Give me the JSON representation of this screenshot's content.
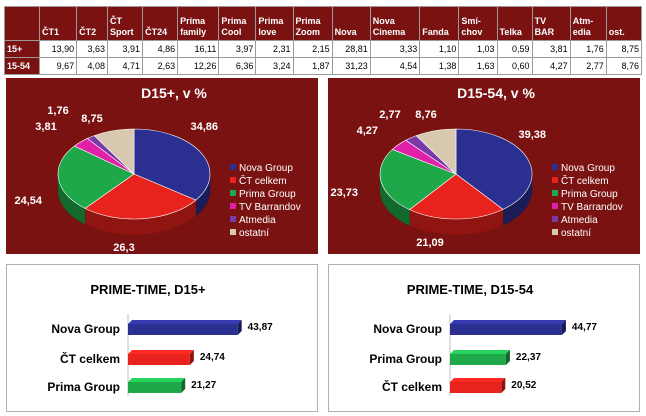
{
  "table": {
    "columns": [
      "",
      "ČT1",
      "ČT2",
      "ČT Sport",
      "ČT24",
      "Prima family",
      "Prima Cool",
      "Prima love",
      "Prima Zoom",
      "Nova",
      "Nova Cinema",
      "Fanda",
      "Smí-chov",
      "Telka",
      "TV BAR",
      "Atm-edia",
      "ost."
    ],
    "rows": [
      {
        "label": "15+",
        "values": [
          "13,90",
          "3,63",
          "3,91",
          "4,86",
          "16,11",
          "3,97",
          "2,31",
          "2,15",
          "28,81",
          "3,33",
          "1,10",
          "1,03",
          "0,59",
          "3,81",
          "1,76",
          "8,75"
        ]
      },
      {
        "label": "15-54",
        "values": [
          "9,67",
          "4,08",
          "4,71",
          "2,63",
          "12,26",
          "6,36",
          "3,24",
          "1,87",
          "31,23",
          "4,54",
          "1,38",
          "1,63",
          "0,60",
          "4,27",
          "2,77",
          "8,76"
        ]
      }
    ]
  },
  "colors": {
    "maroon": "#7a1212",
    "nova": "#2b2f8f",
    "ct": "#e8221c",
    "prima": "#1fa84a",
    "tvb": "#e020a8",
    "atmedia": "#7a3aa6",
    "ostatni": "#d8c8b0"
  },
  "chart_data": [
    {
      "type": "pie",
      "title": "D15+, v %",
      "categories": [
        "Nova Group",
        "ČT celkem",
        "Prima Group",
        "TV Barrandov",
        "Atmedia",
        "ostatní"
      ],
      "values": [
        34.86,
        26.3,
        24.54,
        3.81,
        1.76,
        8.75
      ],
      "value_labels": [
        "34,86",
        "26,3",
        "24,54",
        "3,81",
        "1,76",
        "8,75"
      ],
      "legend_position": "right"
    },
    {
      "type": "pie",
      "title": "D15-54, v %",
      "categories": [
        "Nova Group",
        "ČT celkem",
        "Prima Group",
        "TV Barrandov",
        "Atmedia",
        "ostatní"
      ],
      "values": [
        39.38,
        21.09,
        23.73,
        4.27,
        2.77,
        8.76
      ],
      "value_labels": [
        "39,38",
        "21,09",
        "23,73",
        "4,27",
        "2,77",
        "8,76"
      ],
      "legend_position": "right"
    },
    {
      "type": "bar",
      "orientation": "horizontal",
      "title": "PRIME-TIME, D15+",
      "categories": [
        "Nova Group",
        "ČT celkem",
        "Prima Group"
      ],
      "values": [
        43.87,
        24.74,
        21.27
      ],
      "value_labels": [
        "43,87",
        "24,74",
        "21,27"
      ],
      "bar_colors": [
        "nova",
        "ct",
        "prima"
      ],
      "xlim": [
        0,
        50
      ]
    },
    {
      "type": "bar",
      "orientation": "horizontal",
      "title": "PRIME-TIME, D15-54",
      "categories": [
        "Nova Group",
        "Prima Group",
        "ČT celkem"
      ],
      "values": [
        44.77,
        22.37,
        20.52
      ],
      "value_labels": [
        "44,77",
        "22,37",
        "20,52"
      ],
      "bar_colors": [
        "nova",
        "prima",
        "ct"
      ],
      "xlim": [
        0,
        50
      ]
    }
  ]
}
